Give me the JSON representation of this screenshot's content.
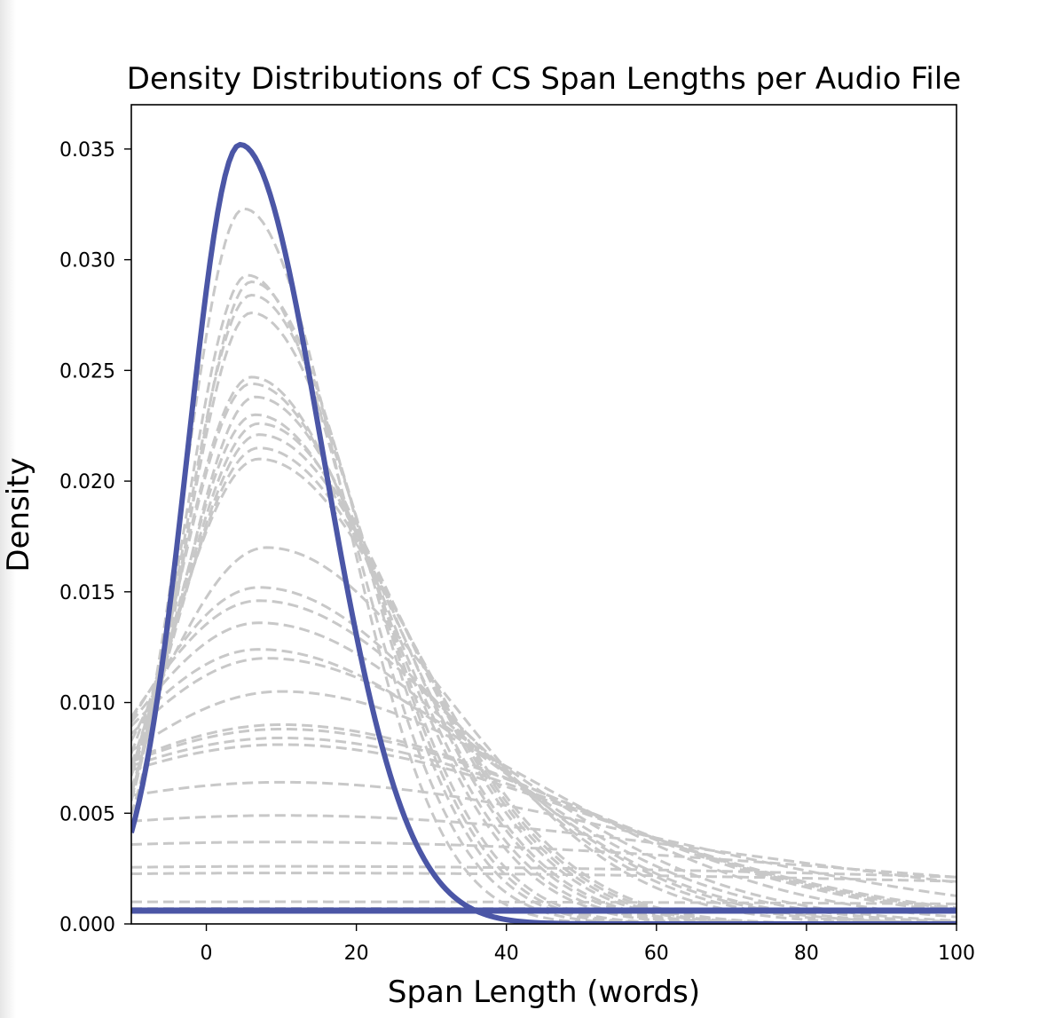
{
  "chart_data": {
    "type": "line",
    "title": "Density Distributions of CS Span Lengths per Audio File",
    "xlabel": "Span Length (words)",
    "ylabel": "Density",
    "xlim": [
      -10,
      100
    ],
    "ylim": [
      0,
      0.037
    ],
    "xticks": [
      0,
      20,
      40,
      60,
      80,
      100
    ],
    "xtick_labels": [
      "0",
      "20",
      "40",
      "60",
      "80",
      "100"
    ],
    "yticks": [
      0,
      0.005,
      0.01,
      0.015,
      0.02,
      0.025,
      0.03,
      0.035
    ],
    "ytick_labels": [
      "0.000",
      "0.005",
      "0.010",
      "0.015",
      "0.020",
      "0.025",
      "0.030",
      "0.035"
    ],
    "grid": false,
    "legend": "none",
    "colors": {
      "highlight": "#4b56a6",
      "background_curves": "#c8c8c8"
    },
    "series": [
      {
        "style": "solid-highlight",
        "peak_x": 4.5,
        "peak_y": 0.0352,
        "sigma_left": 7,
        "sigma_right": 11,
        "baseline": 0.0006
      },
      {
        "style": "dashed",
        "peak_x": 5,
        "peak_y": 0.0323,
        "sigma_left": 8,
        "sigma_right": 13
      },
      {
        "style": "dashed",
        "peak_x": 5.5,
        "peak_y": 0.0293,
        "sigma_left": 8.5,
        "sigma_right": 14
      },
      {
        "style": "dashed",
        "peak_x": 6,
        "peak_y": 0.029,
        "sigma_left": 8.5,
        "sigma_right": 14.5
      },
      {
        "style": "dashed",
        "peak_x": 6,
        "peak_y": 0.0284,
        "sigma_left": 9,
        "sigma_right": 15
      },
      {
        "style": "dashed",
        "peak_x": 6,
        "peak_y": 0.0276,
        "sigma_left": 9,
        "sigma_right": 15.5
      },
      {
        "style": "dashed",
        "peak_x": 6,
        "peak_y": 0.0247,
        "sigma_left": 10,
        "sigma_right": 17
      },
      {
        "style": "dashed",
        "peak_x": 6,
        "peak_y": 0.0244,
        "sigma_left": 10,
        "sigma_right": 17.5
      },
      {
        "style": "dashed",
        "peak_x": 6.5,
        "peak_y": 0.0238,
        "sigma_left": 10,
        "sigma_right": 18
      },
      {
        "style": "dashed",
        "peak_x": 6.5,
        "peak_y": 0.023,
        "sigma_left": 10.5,
        "sigma_right": 18.5
      },
      {
        "style": "dashed",
        "peak_x": 7,
        "peak_y": 0.0226,
        "sigma_left": 11,
        "sigma_right": 19
      },
      {
        "style": "dashed",
        "peak_x": 7,
        "peak_y": 0.0221,
        "sigma_left": 11,
        "sigma_right": 19.5
      },
      {
        "style": "dashed",
        "peak_x": 7,
        "peak_y": 0.0215,
        "sigma_left": 11.5,
        "sigma_right": 20
      },
      {
        "style": "dashed",
        "peak_x": 7,
        "peak_y": 0.021,
        "sigma_left": 12,
        "sigma_right": 20.5
      },
      {
        "style": "dashed",
        "peak_x": 8,
        "peak_y": 0.017,
        "sigma_left": 15,
        "sigma_right": 24
      },
      {
        "style": "dashed",
        "peak_x": 7,
        "peak_y": 0.0152,
        "sigma_left": 17,
        "sigma_right": 26
      },
      {
        "style": "dashed",
        "peak_x": 7,
        "peak_y": 0.0146,
        "sigma_left": 18,
        "sigma_right": 27
      },
      {
        "style": "dashed",
        "peak_x": 7,
        "peak_y": 0.0136,
        "sigma_left": 19,
        "sigma_right": 28
      },
      {
        "style": "dashed",
        "peak_x": 7,
        "peak_y": 0.0124,
        "sigma_left": 21,
        "sigma_right": 30
      },
      {
        "style": "dashed",
        "peak_x": 8,
        "peak_y": 0.012,
        "sigma_left": 22,
        "sigma_right": 31
      },
      {
        "style": "dashed",
        "peak_x": 10,
        "peak_y": 0.0105,
        "sigma_left": 26,
        "sigma_right": 34
      },
      {
        "style": "dashed",
        "peak_x": 10,
        "peak_y": 0.009,
        "sigma_left": 32,
        "sigma_right": 38
      },
      {
        "style": "dashed",
        "peak_x": 10,
        "peak_y": 0.0088,
        "sigma_left": 33,
        "sigma_right": 39
      },
      {
        "style": "dashed",
        "peak_x": 10,
        "peak_y": 0.0084,
        "sigma_left": 35,
        "sigma_right": 40
      },
      {
        "style": "dashed",
        "peak_x": 10,
        "peak_y": 0.0081,
        "sigma_left": 36,
        "sigma_right": 41
      },
      {
        "style": "dashed",
        "peak_x": 10,
        "peak_y": 0.0064,
        "sigma_left": 45,
        "sigma_right": 50
      },
      {
        "style": "dashed",
        "peak_x": 10,
        "peak_y": 0.0049,
        "sigma_left": 60,
        "sigma_right": 65
      },
      {
        "style": "dashed",
        "peak_x": 10,
        "peak_y": 0.0037,
        "sigma_left": 80,
        "sigma_right": 85
      },
      {
        "style": "dashed",
        "peak_x": 10,
        "peak_y": 0.0026,
        "sigma_left": 110,
        "sigma_right": 140
      },
      {
        "style": "dashed",
        "peak_x": 10,
        "peak_y": 0.0023,
        "sigma_left": 110,
        "sigma_right": 150
      },
      {
        "style": "dashed",
        "peak_x": 10,
        "peak_y": 0.001,
        "sigma_left": 200,
        "sigma_right": 200
      },
      {
        "style": "dashed",
        "peak_x": 10,
        "peak_y": 0.0007,
        "sigma_left": 250,
        "sigma_right": 250
      }
    ]
  }
}
